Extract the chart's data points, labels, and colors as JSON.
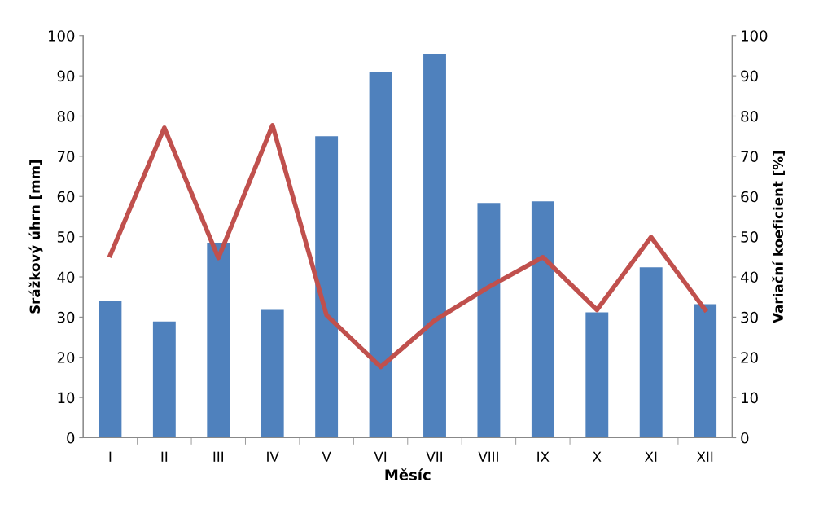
{
  "chart_data": {
    "type": "bar",
    "xlabel": "Měsíc",
    "ylabel": "Srážkový úhrn [mm]",
    "y2label": "Variační koeficient [%]",
    "categories": [
      "I",
      "II",
      "III",
      "IV",
      "V",
      "VI",
      "VII",
      "VIII",
      "IX",
      "X",
      "XI",
      "XII"
    ],
    "series": [
      {
        "color": "#4f81bd",
        "values": [
          33.9,
          28.9,
          48.5,
          31.8,
          75.0,
          90.9,
          95.5,
          58.4,
          58.8,
          31.2,
          42.4,
          33.2
        ]
      },
      {
        "type": "line",
        "axis": "y2",
        "color": "#c0504d",
        "values": [
          45.4,
          77.1,
          44.7,
          77.7,
          30.5,
          17.6,
          29.2,
          37.5,
          44.9,
          31.8,
          49.9,
          31.8
        ]
      }
    ],
    "ylim": [
      0,
      100
    ],
    "yticks": [
      0,
      10,
      20,
      30,
      40,
      50,
      60,
      70,
      80,
      90,
      100
    ],
    "y2lim": [
      0,
      100
    ],
    "y2ticks": [
      0,
      10,
      20,
      30,
      40,
      50,
      60,
      70,
      80,
      90,
      100
    ],
    "grid": false,
    "legend": false,
    "marker": "none",
    "line_style": "solid"
  }
}
